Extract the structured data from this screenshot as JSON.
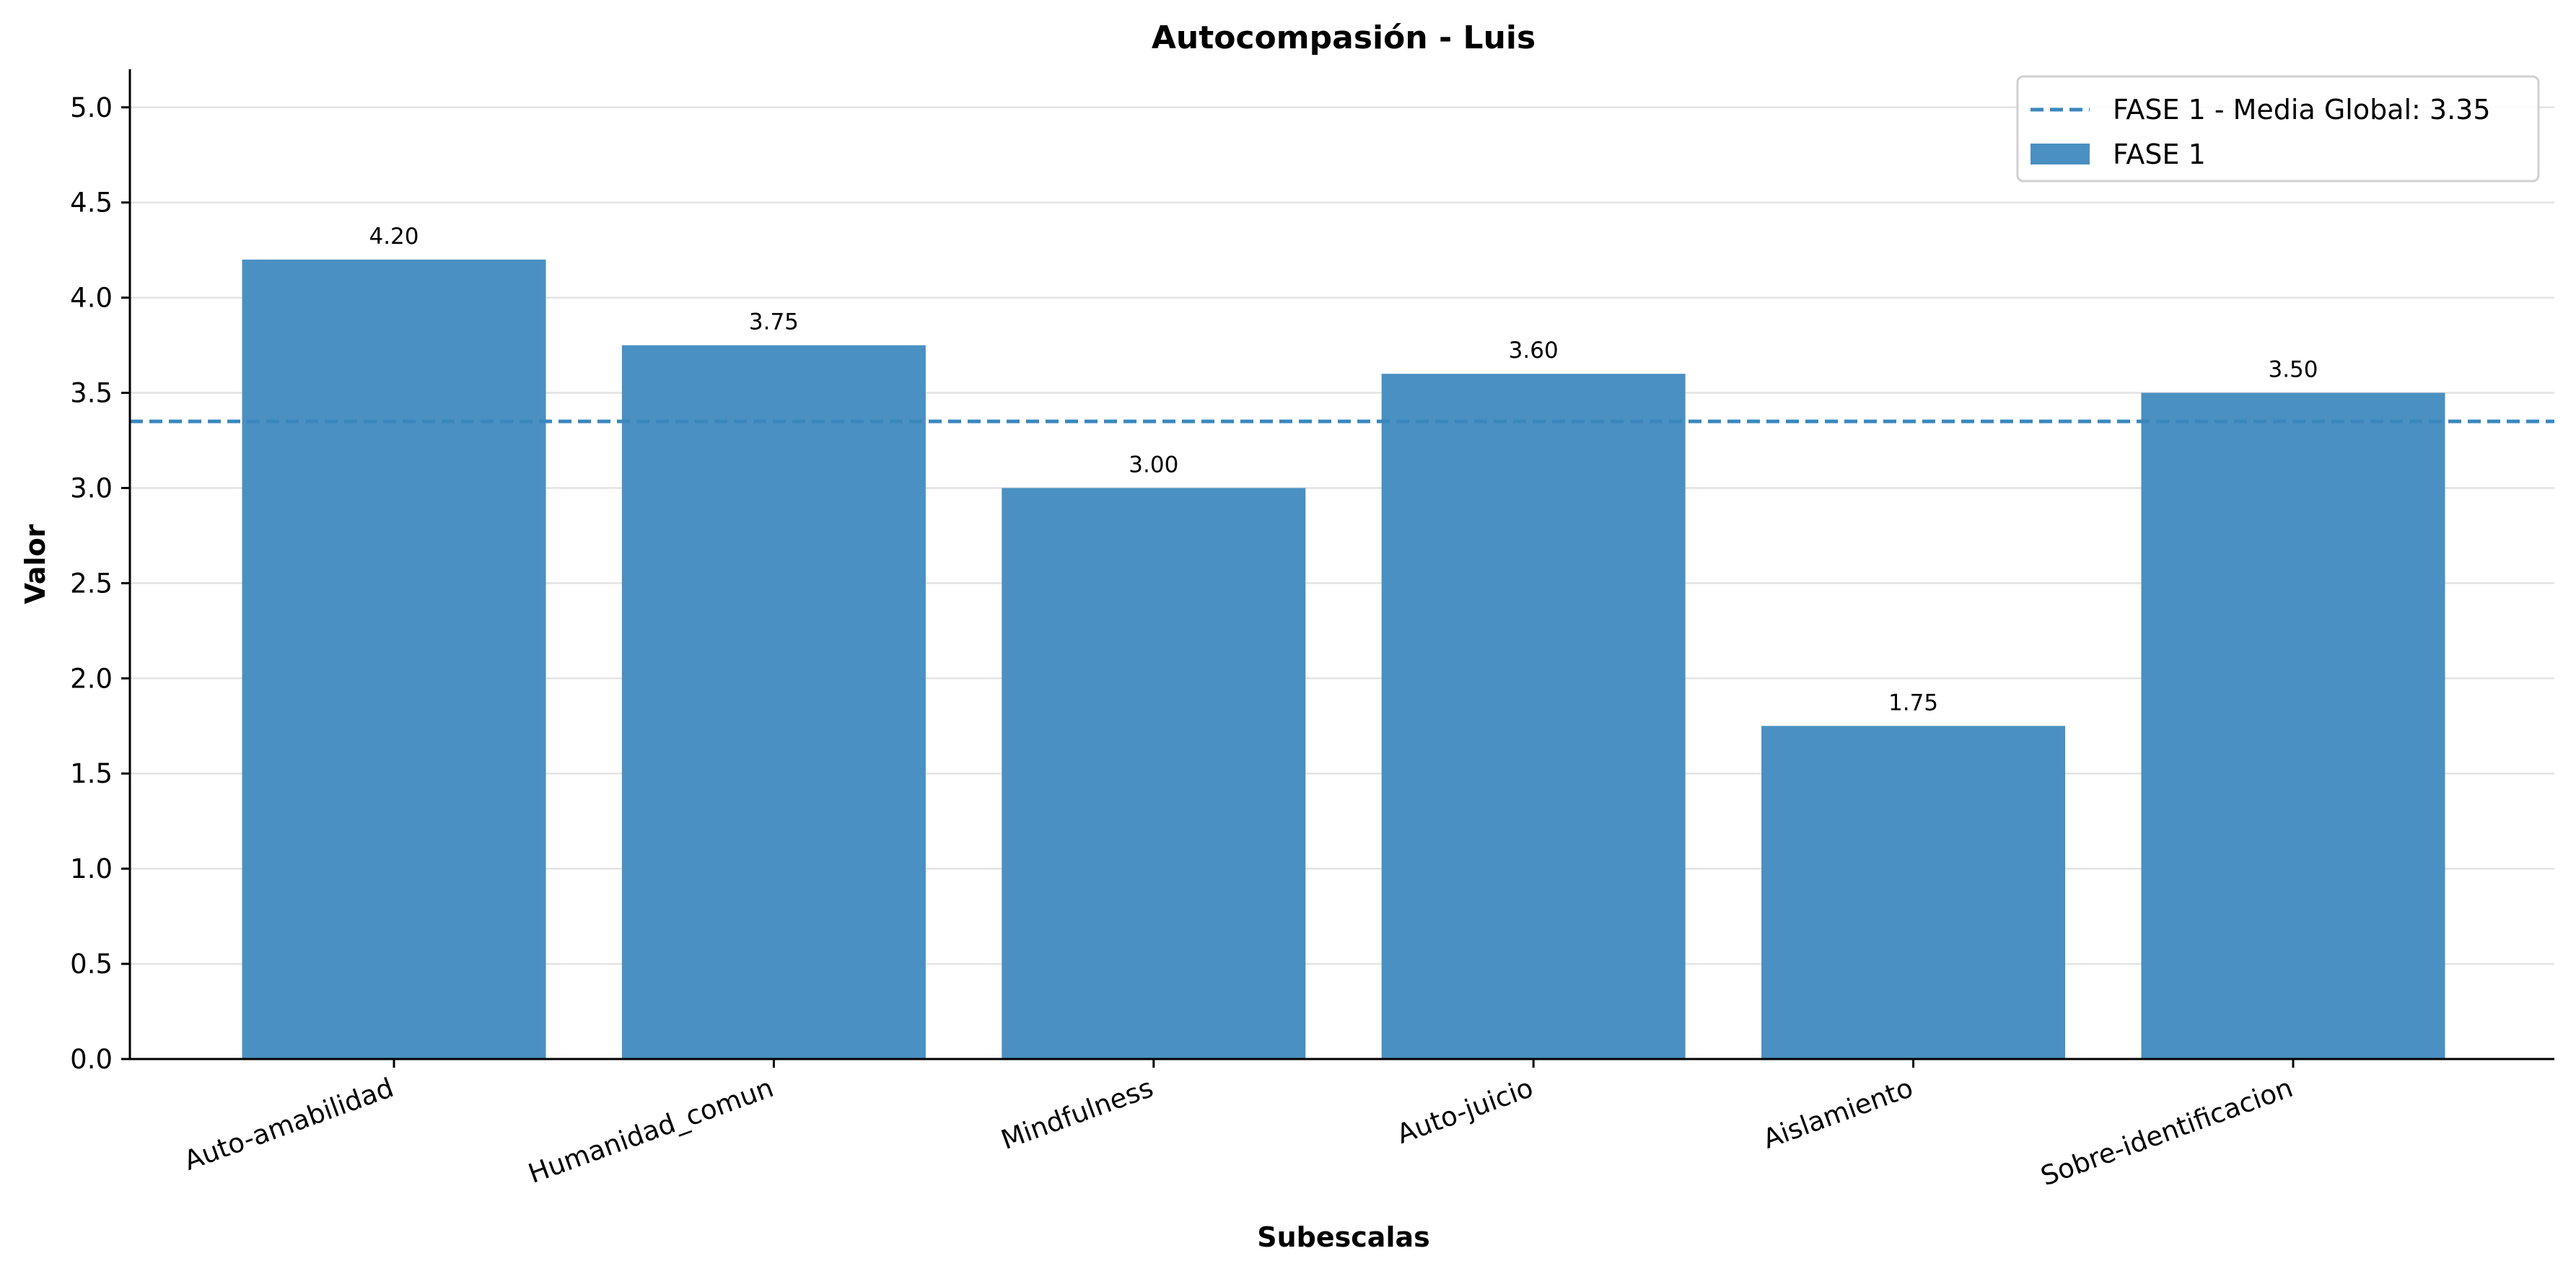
{
  "chart_data": {
    "type": "bar",
    "title": "Autocompasión - Luis",
    "xlabel": "Subescalas",
    "ylabel": "Valor",
    "categories": [
      "Auto-amabilidad",
      "Humanidad_comun",
      "Mindfulness",
      "Auto-juicio",
      "Aislamiento",
      "Sobre-identificacion"
    ],
    "series": [
      {
        "name": "FASE 1",
        "values": [
          4.2,
          3.75,
          3.0,
          3.6,
          1.75,
          3.5
        ],
        "color": "#4a90c2"
      }
    ],
    "value_labels": [
      "4.20",
      "3.75",
      "3.00",
      "3.60",
      "1.75",
      "3.50"
    ],
    "reference_line": {
      "label": "FASE 1 - Media Global: 3.35",
      "value": 3.35,
      "style": "dashed",
      "color": "#3a87bd"
    },
    "ylim": [
      0,
      5.2
    ],
    "yticks": [
      0.0,
      0.5,
      1.0,
      1.5,
      2.0,
      2.5,
      3.0,
      3.5,
      4.0,
      4.5,
      5.0
    ],
    "ytick_labels": [
      "0.0",
      "0.5",
      "1.0",
      "1.5",
      "2.0",
      "2.5",
      "3.0",
      "3.5",
      "4.0",
      "4.5",
      "5.0"
    ],
    "grid": "horizontal",
    "legend_position": "top-right"
  }
}
